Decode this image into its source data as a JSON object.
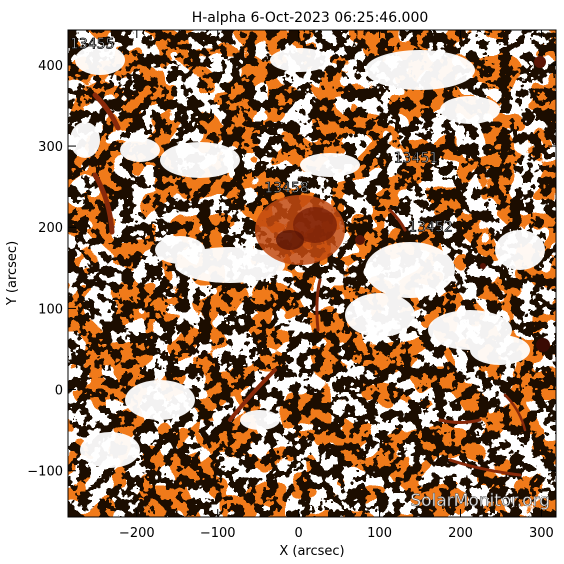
{
  "chart_data": {
    "type": "heatmap",
    "title": "H-alpha   6-Oct-2023  06:25:46.000",
    "xlabel": "X (arcsec)",
    "ylabel": "Y (arcsec)",
    "xlim": [
      -285,
      318
    ],
    "ylim": [
      -157,
      443
    ],
    "xticks": [
      -200,
      -100,
      0,
      100,
      200,
      300
    ],
    "yticks": [
      -100,
      0,
      100,
      200,
      300,
      400
    ],
    "colormap": [
      "#ffffff",
      "#ffd0a0",
      "#f07a1a",
      "#c24a10",
      "#5a1506",
      "#000000"
    ],
    "regions": [
      {
        "label": "13455",
        "x": -255,
        "y": 420
      },
      {
        "label": "13458",
        "x": -15,
        "y": 243
      },
      {
        "label": "13451",
        "x": 145,
        "y": 280
      },
      {
        "label": "13452",
        "x": 163,
        "y": 195
      }
    ],
    "watermark": "SolarMonitor.org"
  }
}
